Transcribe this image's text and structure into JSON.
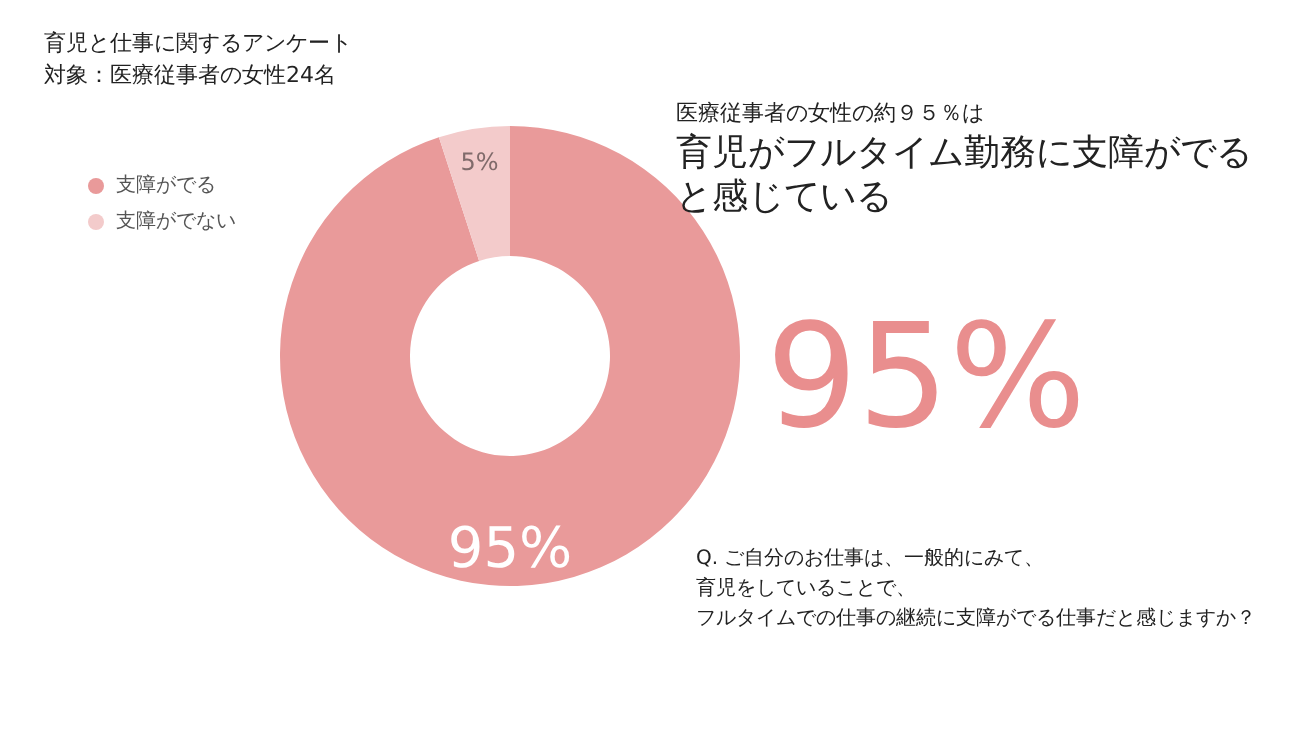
{
  "chart_data": {
    "type": "donut",
    "title": "育児と仕事に関するアンケート",
    "subtitle": "対象：医療従事者の女性24名",
    "categories": [
      "支障がでる",
      "支障がでない"
    ],
    "values": [
      95,
      5
    ],
    "colors": [
      "#e99a9a",
      "#f3cbcb"
    ],
    "value_labels": [
      "95%",
      "5%"
    ],
    "legend": "top left",
    "annotations": [
      "医療従事者の女性の約９５％は",
      "育児がフルタイム勤務に支障がでる",
      "と感じている",
      "95%",
      "Q. ご自分のお仕事は、一般的にみて、",
      "育児をしていることで、",
      "フルタイムでの仕事の継続に支障がでる仕事だと感じますか？"
    ]
  }
}
